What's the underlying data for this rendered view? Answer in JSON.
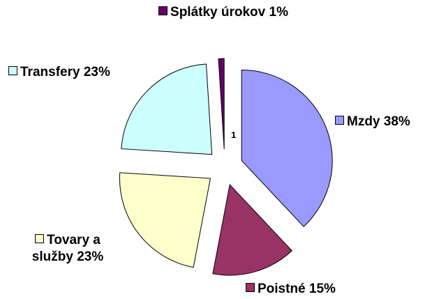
{
  "chart_data": {
    "type": "pie",
    "categories": [
      "Mzdy",
      "Poistné",
      "Tovary a služby",
      "Transfery",
      "Splátky úrokov"
    ],
    "values": [
      38,
      15,
      23,
      23,
      1
    ],
    "value_labels": [
      "38%",
      "15%",
      "23%",
      "23%",
      "1%"
    ],
    "colors": [
      "#9999ff",
      "#993366",
      "#ffffcc",
      "#ccffff",
      "#660066"
    ],
    "center_label": "1",
    "exploded": true
  }
}
